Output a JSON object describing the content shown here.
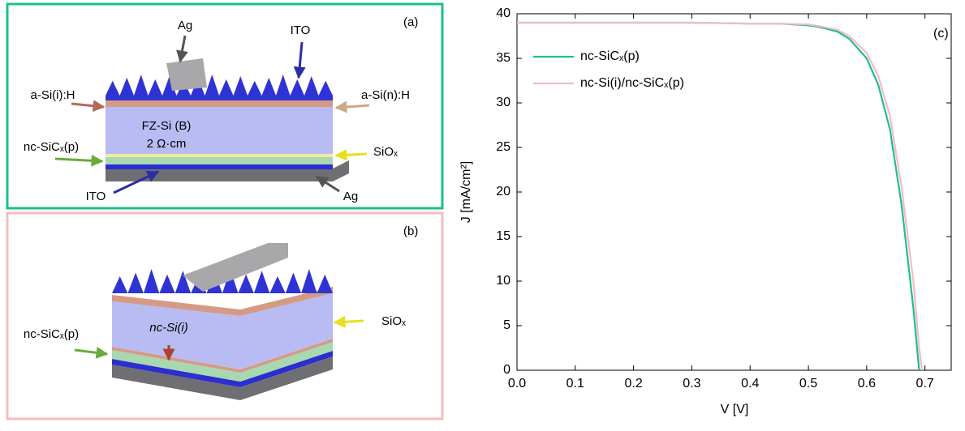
{
  "panel_a": {
    "label": "(a)",
    "top_contact": "Ag",
    "top_tco": "ITO",
    "front_passivation": "a-Si(i):H",
    "front_doped": "a-Si(n):H",
    "absorber": "FZ-Si (B)",
    "resistivity": "2 Ω·cm",
    "rear_contact_layer": "nc-SiCₓ(p)",
    "tunnel_oxide": "SiOₓ",
    "rear_tco": "ITO",
    "rear_contact": "Ag"
  },
  "panel_b": {
    "label": "(b)",
    "rear_contact_layer": "nc-SiCₓ(p)",
    "intrinsic_layer": "nc-Si(i)",
    "tunnel_oxide": "SiOₓ"
  },
  "chart_data": {
    "type": "line",
    "annotation": "(c)",
    "x_label": "V [V]",
    "y_label": "J [mA/cm²]",
    "x": [
      0,
      0.1,
      0.2,
      0.3,
      0.4,
      0.45,
      0.5,
      0.52,
      0.55,
      0.57,
      0.6,
      0.62,
      0.64,
      0.66,
      0.68,
      0.69,
      0.695
    ],
    "series": [
      {
        "name": "nc-SiCₓ(p)",
        "color": "#1dbf8f",
        "values": [
          39.0,
          39.0,
          39.0,
          39.0,
          38.9,
          38.9,
          38.7,
          38.5,
          38.0,
          37.2,
          35.0,
          32.0,
          27.0,
          18.5,
          7.0,
          0,
          null
        ]
      },
      {
        "name": "nc-Si(i)/nc-SiCₓ(p)",
        "color": "#f4bcbf",
        "values": [
          39.0,
          39.0,
          39.0,
          39.0,
          38.9,
          38.9,
          38.8,
          38.6,
          38.2,
          37.5,
          35.6,
          33.0,
          28.5,
          20.5,
          10.0,
          2.5,
          0
        ]
      }
    ],
    "xlim": [
      0,
      0.745
    ],
    "ylim": [
      0,
      40
    ],
    "xticks": [
      {
        "value": 0,
        "label": "0.0"
      },
      0.1,
      0.2,
      0.3,
      0.4,
      0.5,
      0.6,
      0.7
    ],
    "yticks": [
      0,
      5,
      10,
      15,
      20,
      25,
      30,
      35,
      40
    ],
    "legend": "upper left"
  }
}
